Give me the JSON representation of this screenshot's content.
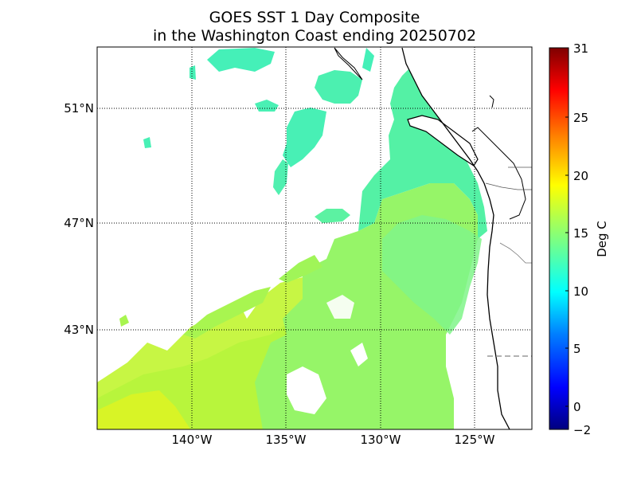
{
  "figure": {
    "title_line1": "GOES SST 1 Day Composite",
    "title_line2": "in the Washington Coast ending 20250702"
  },
  "map": {
    "lat_labels": [
      "51°N",
      "47°N",
      "43°N"
    ],
    "lon_labels": [
      "140°W",
      "135°W",
      "130°W",
      "125°W"
    ],
    "lat_gridlines": [
      51,
      47,
      43
    ],
    "lon_gridlines": [
      -140,
      -135,
      -130,
      -125
    ],
    "extent": {
      "lon_min": -145,
      "lon_max": -122,
      "lat_min": 39,
      "lat_max": 53
    },
    "features": [
      "sea-surface-temperature-field",
      "coastline",
      "state-borders",
      "national-border"
    ]
  },
  "colorbar": {
    "label": "Deg C",
    "ticks": [
      "31",
      "25",
      "20",
      "15",
      "10",
      "5",
      "0",
      "−2"
    ],
    "tick_values": [
      31,
      25,
      20,
      15,
      10,
      5,
      0,
      -2
    ],
    "min": -2,
    "max": 31,
    "colormap": "jet",
    "colors": [
      "#00007f",
      "#0000ff",
      "#007fff",
      "#00ffff",
      "#7fff7f",
      "#ffff00",
      "#ff7f00",
      "#ff0000",
      "#7f0000"
    ]
  },
  "colors": {
    "sst_cool": "#40f0b0",
    "sst_mid": "#7ff58a",
    "sst_warm": "#b5f535",
    "sst_hot": "#e0f020"
  }
}
